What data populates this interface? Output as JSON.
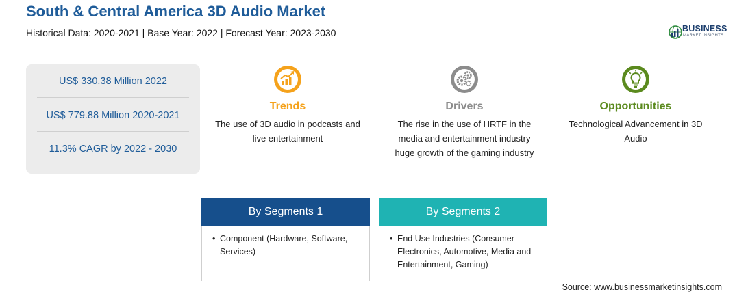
{
  "header": {
    "title": "South & Central America 3D Audio Market",
    "subtitle": "Historical Data: 2020-2021 | Base Year: 2022 | Forecast Year: 2023-2030"
  },
  "logo": {
    "word": "BUSINESS",
    "sub": "MARKET INSIGHTS",
    "icon": "globe-chart-icon",
    "colors": {
      "navy": "#1d3f6e",
      "green": "#2e8b3e"
    }
  },
  "stats": [
    {
      "value": "US$ 330.38 Million 2022"
    },
    {
      "value": "US$ 779.88 Million 2020-2021"
    },
    {
      "value": "11.3% CAGR by 2022 - 2030"
    }
  ],
  "features": [
    {
      "key": "trends",
      "title": "Trends",
      "icon": "trend-chart-icon",
      "color": "#f5a21b",
      "lines": [
        "The use of 3D audio in podcasts and",
        "live entertainment"
      ]
    },
    {
      "key": "drivers",
      "title": "Drivers",
      "icon": "gears-icon",
      "color": "#8c8c8c",
      "lines": [
        "The rise in the use of HRTF in the",
        "media and entertainment industry",
        "huge growth of the gaming industry"
      ]
    },
    {
      "key": "opportunities",
      "title": "Opportunities",
      "icon": "lightbulb-icon",
      "color": "#5b8a1e",
      "lines": [
        "Technological Advancement in 3D",
        "Audio"
      ]
    }
  ],
  "segments": [
    {
      "title": "By Segments 1",
      "color": "#164f8c",
      "items": [
        {
          "bullet": "•",
          "lines": [
            "Component (Hardware, Software,",
            "Services)"
          ]
        }
      ]
    },
    {
      "title": "By Segments 2",
      "color": "#1fb3b3",
      "items": [
        {
          "bullet": "•",
          "lines": [
            "End Use Industries (Consumer",
            "Electronics, Automotive, Media and",
            "Entertainment, Gaming)"
          ]
        }
      ]
    }
  ],
  "footer": {
    "source": "Source: www.businessmarketinsights.com"
  }
}
